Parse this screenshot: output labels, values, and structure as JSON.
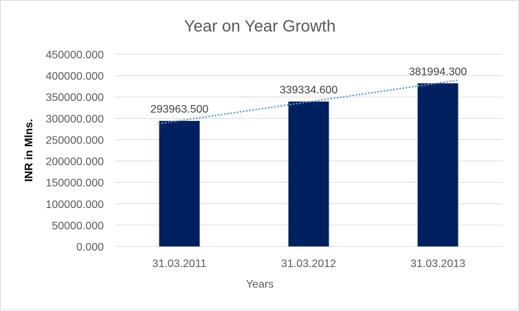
{
  "chart_data": {
    "type": "bar",
    "title": "Year on Year Growth",
    "xlabel": "Years",
    "ylabel": "INR in Mlns.",
    "categories": [
      "31.03.2011",
      "31.03.2012",
      "31.03.2013"
    ],
    "values": [
      293963.5,
      339334.6,
      381994.3
    ],
    "data_labels": [
      "293963.500",
      "339334.600",
      "381994.300"
    ],
    "ylim": [
      0,
      450000
    ],
    "yticks": [
      0,
      50000,
      100000,
      150000,
      200000,
      250000,
      300000,
      350000,
      400000,
      450000
    ],
    "ytick_labels": [
      "0.000",
      "50000.000",
      "100000.000",
      "150000.000",
      "200000.000",
      "250000.000",
      "300000.000",
      "350000.000",
      "400000.000",
      "450000.000"
    ],
    "grid": true,
    "legend": "none",
    "trendline": "linear, dotted",
    "colors": {
      "bar": "#002060",
      "trendline": "#5b9bd5",
      "grid": "#d9d9d9",
      "text": "#595959"
    }
  }
}
